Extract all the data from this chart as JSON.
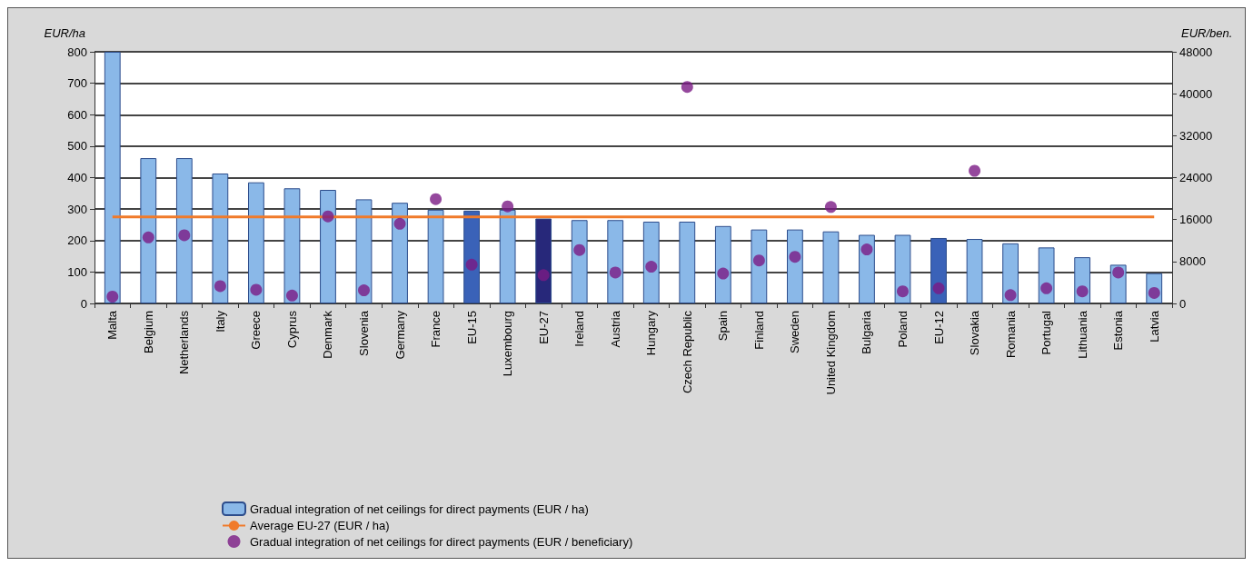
{
  "chart_data": {
    "type": "bar",
    "ylabel": "EUR/ha",
    "y2label": "EUR/ben.",
    "categories": [
      "Malta",
      "Belgium",
      "Netherlands",
      "Italy",
      "Greece",
      "Cyprus",
      "Denmark",
      "Slovenia",
      "Germany",
      "France",
      "EU-15",
      "Luxembourg",
      "EU-27",
      "Ireland",
      "Austria",
      "Hungary",
      "Czech Republic",
      "Spain",
      "Finland",
      "Sweden",
      "United Kingdom",
      "Bulgaria",
      "Poland",
      "EU-12",
      "Slovakia",
      "Romania",
      "Portugal",
      "Lithuania",
      "Estonia",
      "Latvia"
    ],
    "series": [
      {
        "name": "Gradual integration of net ceilings for direct payments (EUR / ha)",
        "color": "#8ab8e8",
        "colors": [
          "#8ab8e8",
          "#8ab8e8",
          "#8ab8e8",
          "#8ab8e8",
          "#8ab8e8",
          "#8ab8e8",
          "#8ab8e8",
          "#8ab8e8",
          "#8ab8e8",
          "#8ab8e8",
          "#3a62b8",
          "#8ab8e8",
          "#27287a",
          "#8ab8e8",
          "#8ab8e8",
          "#8ab8e8",
          "#8ab8e8",
          "#8ab8e8",
          "#8ab8e8",
          "#8ab8e8",
          "#8ab8e8",
          "#8ab8e8",
          "#8ab8e8",
          "#3a62b8",
          "#8ab8e8",
          "#8ab8e8",
          "#8ab8e8",
          "#8ab8e8",
          "#8ab8e8",
          "#8ab8e8"
        ],
        "values": [
          800,
          462,
          462,
          413,
          385,
          366,
          361,
          331,
          320,
          298,
          295,
          298,
          270,
          265,
          265,
          260,
          260,
          246,
          235,
          235,
          229,
          218,
          218,
          208,
          205,
          191,
          178,
          147,
          123,
          96
        ]
      },
      {
        "type": "line",
        "name": "Average EU-27 (EUR / ha)",
        "color": "#f07a2a",
        "marker": "none",
        "values": [
          275,
          275,
          275,
          275,
          275,
          275,
          275,
          275,
          275,
          275,
          275,
          275,
          275,
          275,
          275,
          275,
          275,
          275,
          275,
          275,
          275,
          275,
          275,
          275,
          275,
          275,
          275,
          275,
          275,
          275
        ]
      },
      {
        "type": "scatter",
        "axis": "y2",
        "name": "Gradual integration of net ceilings for direct payments (EUR / beneficiary)",
        "color": "#7b1a84",
        "marker": "circle",
        "values": [
          1300,
          12600,
          13000,
          3300,
          2600,
          1500,
          16600,
          2500,
          15200,
          19900,
          7400,
          18500,
          5400,
          10200,
          5900,
          7000,
          41300,
          5700,
          8200,
          8900,
          18400,
          10300,
          2300,
          2900,
          25300,
          1600,
          2900,
          2300,
          5900,
          2000
        ]
      }
    ],
    "ylim": [
      0,
      800
    ],
    "yticks": [
      0,
      100,
      200,
      300,
      400,
      500,
      600,
      700,
      800
    ],
    "y2lim": [
      0,
      48000
    ],
    "y2ticks": [
      0,
      8000,
      16000,
      24000,
      32000,
      40000,
      48000
    ],
    "grid": "y",
    "legend": "bottom left"
  }
}
